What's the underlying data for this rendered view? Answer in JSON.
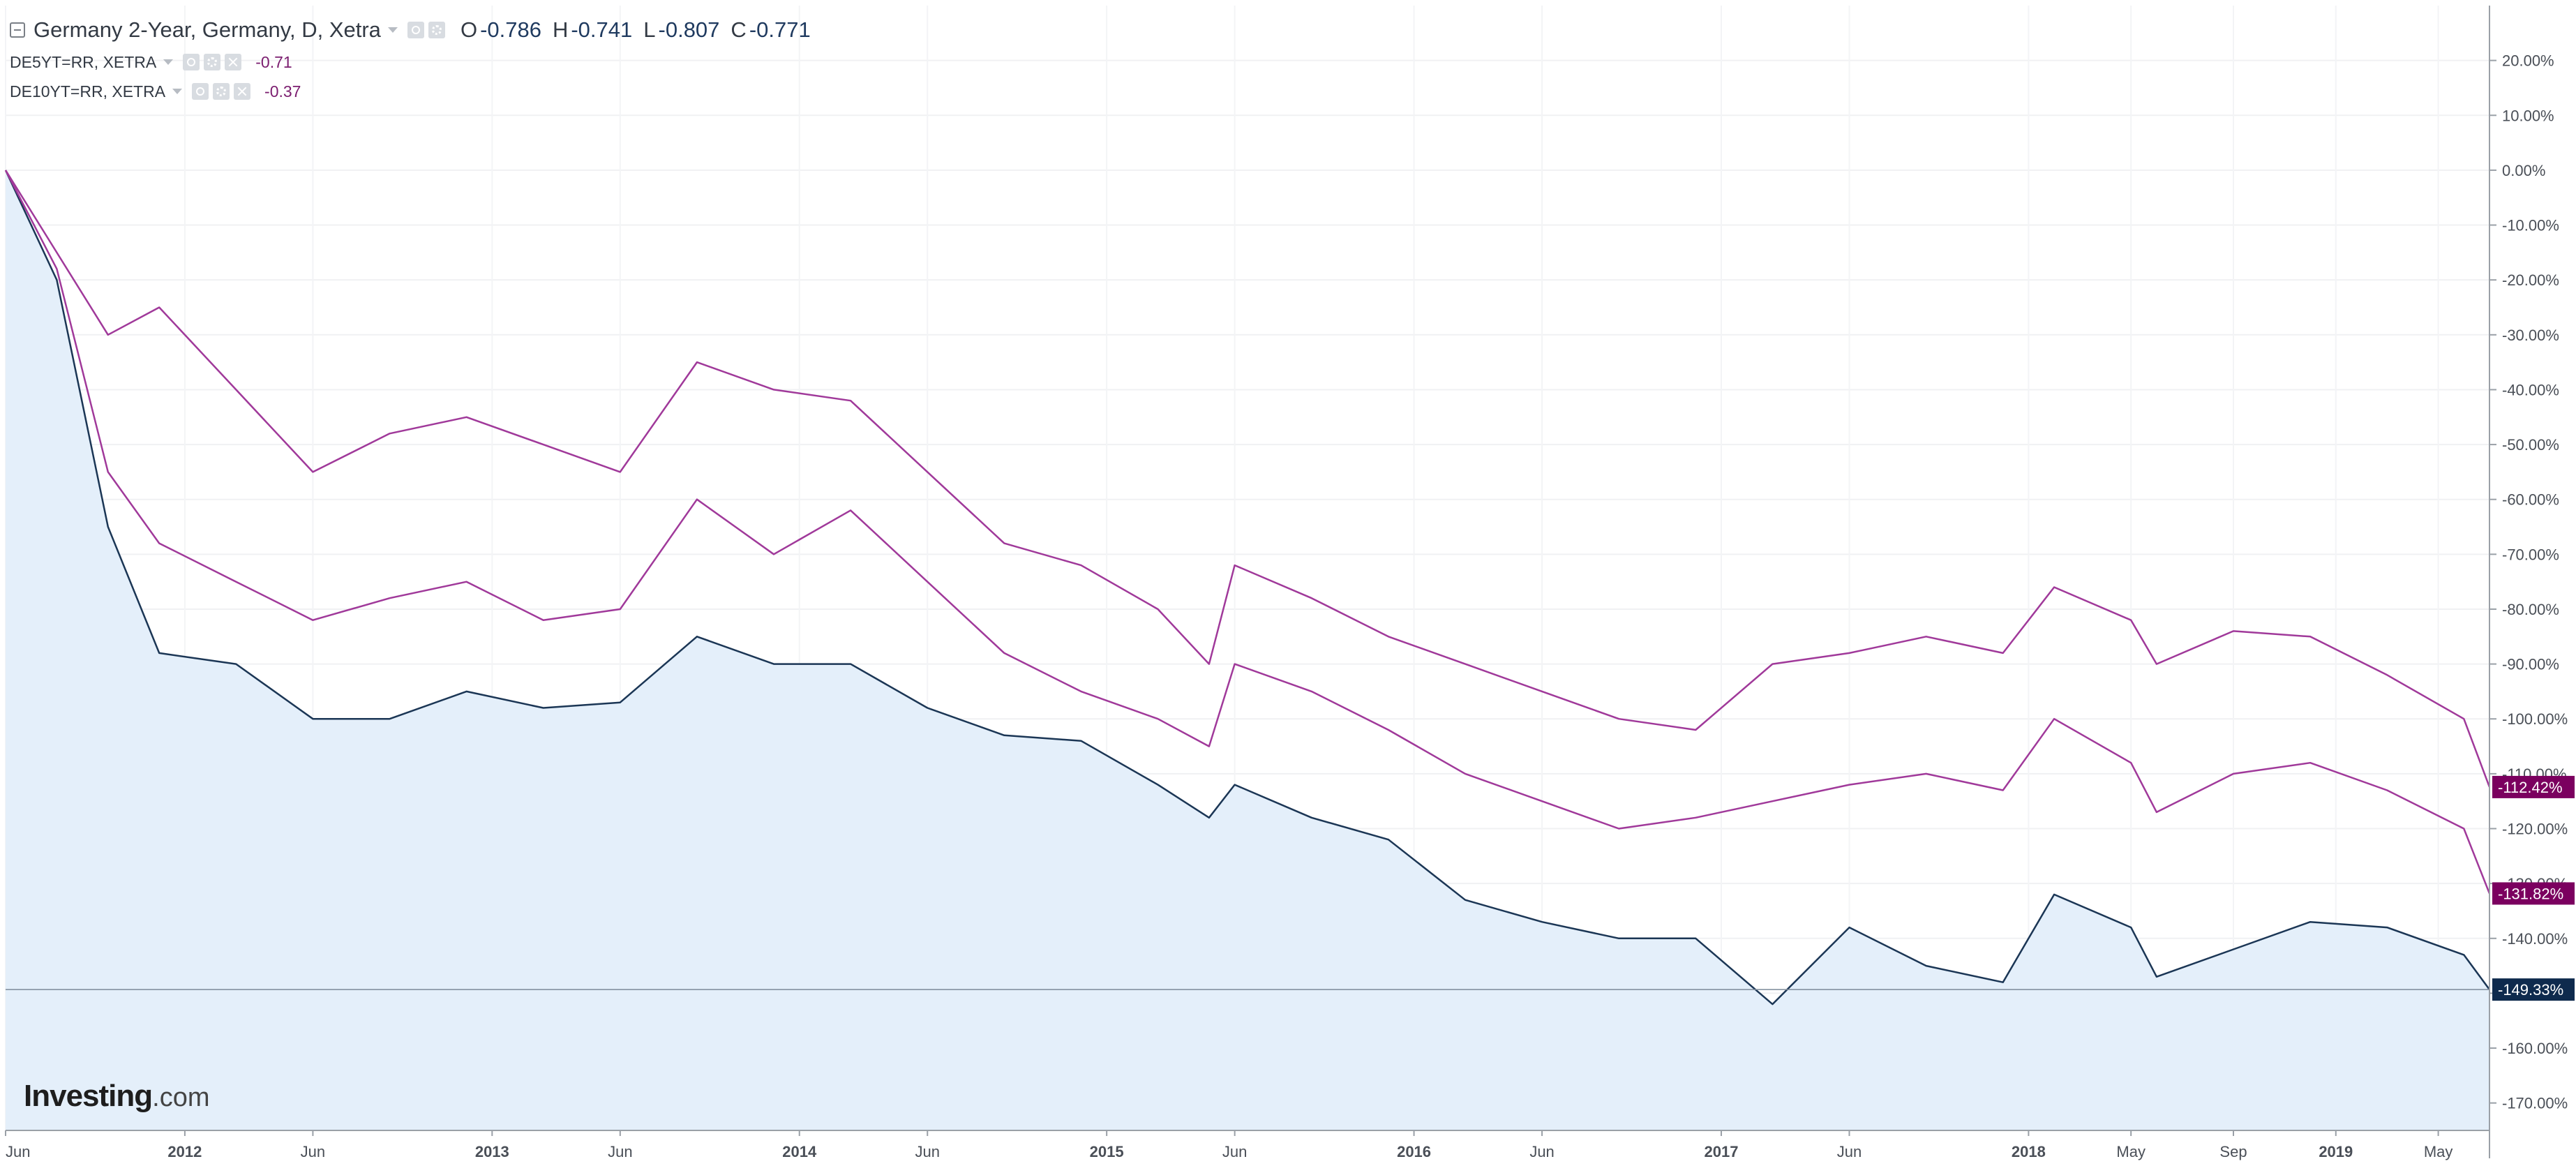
{
  "legend": {
    "main": {
      "title": "Germany 2-Year, Germany, D, Xetra",
      "open_key": "O",
      "open": "-0.786",
      "high_key": "H",
      "high": "-0.741",
      "low_key": "L",
      "low": "-0.807",
      "close_key": "C",
      "close": "-0.771"
    },
    "sub": [
      {
        "title": "DE5YT=RR, XETRA",
        "value": "-0.71"
      },
      {
        "title": "DE10YT=RR, XETRA",
        "value": "-0.37"
      }
    ]
  },
  "logo": {
    "brand": "Investing",
    "suffix": ".com"
  },
  "colors": {
    "main_series": "#1b3655",
    "compare_series": "#a0399a",
    "area_fill": "#e4effa",
    "last_main": "#0e2a4d",
    "last_compare": "#7b005f"
  },
  "chart_data": {
    "type": "line",
    "title": "Germany 2-Year, Germany, D, Xetra",
    "x_range": [
      "2011-06",
      "2019-07"
    ],
    "y_unit": "%",
    "ylim": [
      -175,
      30
    ],
    "y_ticks": [
      "20.00%",
      "10.00%",
      "0.00%",
      "-10.00%",
      "-20.00%",
      "-30.00%",
      "-40.00%",
      "-50.00%",
      "-60.00%",
      "-70.00%",
      "-80.00%",
      "-90.00%",
      "-100.00%",
      "-110.00%",
      "-120.00%",
      "-130.00%",
      "-140.00%",
      "-150.00%",
      "-160.00%",
      "-170.00%"
    ],
    "x_ticks": [
      "Jun",
      "2012",
      "Jun",
      "2013",
      "Jun",
      "2014",
      "Jun",
      "2015",
      "Jun",
      "2016",
      "Jun",
      "2017",
      "Jun",
      "2018",
      "May",
      "Sep",
      "2019",
      "May"
    ],
    "grid": true,
    "x": [
      "2011-06",
      "2011-08",
      "2011-10",
      "2011-12",
      "2012-03",
      "2012-06",
      "2012-09",
      "2012-12",
      "2013-03",
      "2013-06",
      "2013-09",
      "2013-12",
      "2014-03",
      "2014-06",
      "2014-09",
      "2014-12",
      "2015-03",
      "2015-05",
      "2015-06",
      "2015-09",
      "2015-12",
      "2016-03",
      "2016-06",
      "2016-09",
      "2016-12",
      "2017-03",
      "2017-06",
      "2017-09",
      "2017-12",
      "2018-02",
      "2018-05",
      "2018-06",
      "2018-09",
      "2018-12",
      "2019-03",
      "2019-06",
      "2019-07"
    ],
    "series": [
      {
        "name": "Germany 2-Year, Germany, D, Xetra",
        "values": [
          0,
          -20,
          -65,
          -88,
          -90,
          -100,
          -100,
          -95,
          -98,
          -97,
          -85,
          -90,
          -90,
          -98,
          -103,
          -104,
          -112,
          -118,
          -112,
          -118,
          -122,
          -133,
          -137,
          -140,
          -140,
          -152,
          -138,
          -145,
          -148,
          -132,
          -138,
          -147,
          -142,
          -137,
          -138,
          -143,
          -149.33
        ],
        "last_label": "-149.33%"
      },
      {
        "name": "DE5YT=RR, XETRA",
        "values": [
          0,
          -18,
          -55,
          -68,
          -75,
          -82,
          -78,
          -75,
          -82,
          -80,
          -60,
          -70,
          -62,
          -75,
          -88,
          -95,
          -100,
          -105,
          -90,
          -95,
          -102,
          -110,
          -115,
          -120,
          -118,
          -115,
          -112,
          -110,
          -113,
          -100,
          -108,
          -117,
          -110,
          -108,
          -113,
          -120,
          -131.82
        ],
        "last_label": "-131.82%"
      },
      {
        "name": "DE10YT=RR, XETRA",
        "values": [
          0,
          -15,
          -30,
          -25,
          -40,
          -55,
          -48,
          -45,
          -50,
          -55,
          -35,
          -40,
          -42,
          -55,
          -68,
          -72,
          -80,
          -90,
          -72,
          -78,
          -85,
          -90,
          -95,
          -100,
          -102,
          -90,
          -88,
          -85,
          -88,
          -76,
          -82,
          -90,
          -84,
          -85,
          -92,
          -100,
          -112.42
        ],
        "last_label": "-112.42%"
      }
    ]
  }
}
